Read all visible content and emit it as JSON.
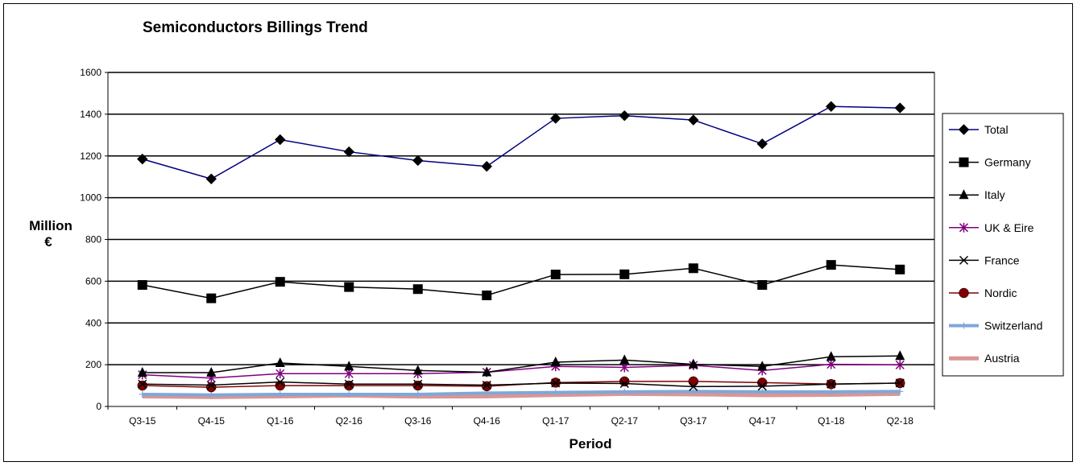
{
  "chart_data": {
    "type": "line",
    "title": "Semiconductors Billings Trend",
    "xlabel": "Period",
    "ylabel_line1": "Million",
    "ylabel_line2": "€",
    "categories": [
      "Q3-15",
      "Q4-15",
      "Q1-16",
      "Q2-16",
      "Q3-16",
      "Q4-16",
      "Q1-17",
      "Q2-17",
      "Q3-17",
      "Q4-17",
      "Q1-18",
      "Q2-18"
    ],
    "ylim": [
      0,
      1600
    ],
    "yticks": [
      0,
      200,
      400,
      600,
      800,
      1000,
      1200,
      1400,
      1600
    ],
    "grid": "horizontal",
    "legend_position": "right",
    "series": [
      {
        "name": "Total",
        "color": "#000080",
        "marker": "diamond",
        "values": [
          1185,
          1090,
          1278,
          1220,
          1178,
          1150,
          1380,
          1393,
          1372,
          1258,
          1437,
          1430
        ]
      },
      {
        "name": "Germany",
        "color": "#000000",
        "marker": "square",
        "values": [
          582,
          518,
          597,
          572,
          562,
          532,
          632,
          633,
          662,
          582,
          678,
          656
        ]
      },
      {
        "name": "Italy",
        "color": "#000000",
        "marker": "triangle",
        "values": [
          162,
          162,
          208,
          192,
          172,
          164,
          212,
          222,
          202,
          192,
          238,
          242
        ]
      },
      {
        "name": "UK & Eire",
        "color": "#800080",
        "marker": "star",
        "values": [
          152,
          136,
          157,
          157,
          157,
          164,
          192,
          187,
          197,
          172,
          202,
          199
        ]
      },
      {
        "name": "France",
        "color": "#000000",
        "marker": "x",
        "values": [
          107,
          102,
          117,
          107,
          107,
          102,
          112,
          110,
          95,
          97,
          107,
          112
        ]
      },
      {
        "name": "Nordic",
        "color": "#800000",
        "marker": "circle",
        "values": [
          100,
          92,
          100,
          100,
          100,
          97,
          114,
          120,
          120,
          114,
          107,
          112
        ]
      },
      {
        "name": "Switzerland",
        "color": "#7FA7D9",
        "marker": "plus",
        "values": [
          58,
          55,
          58,
          58,
          58,
          64,
          67,
          70,
          72,
          70,
          70,
          72
        ]
      },
      {
        "name": "Austria",
        "color": "#DA9694",
        "marker": "none",
        "values": [
          48,
          45,
          48,
          52,
          47,
          48,
          55,
          60,
          58,
          54,
          56,
          60
        ]
      }
    ]
  }
}
